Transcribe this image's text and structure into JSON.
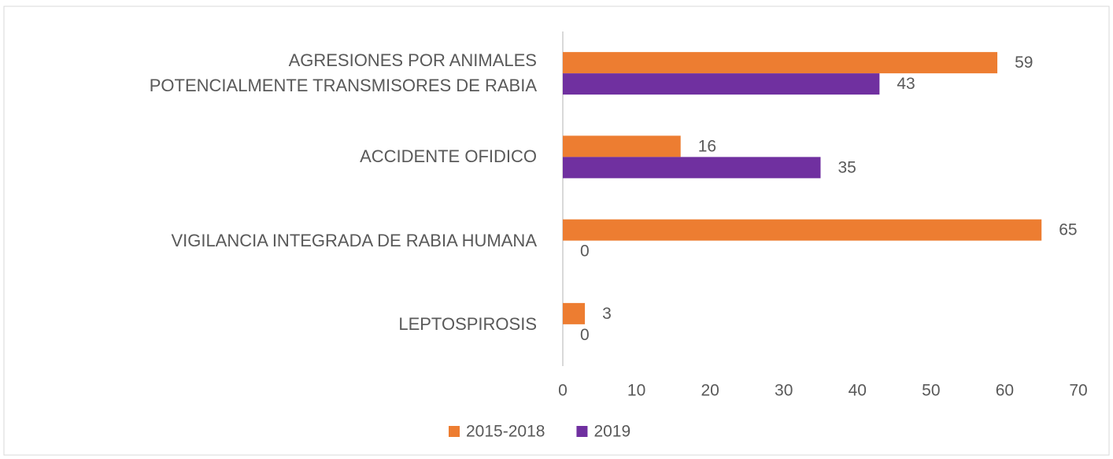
{
  "chart_data": {
    "type": "barh",
    "categories": [
      "AGRESIONES POR ANIMALES\nPOTENCIALMENTE TRANSMISORES DE RABIA",
      "ACCIDENTE OFIDICO",
      "VIGILANCIA INTEGRADA DE RABIA HUMANA",
      "LEPTOSPIROSIS"
    ],
    "series": [
      {
        "name": "2015-2018",
        "color": "#ed7d31",
        "values": [
          59,
          16,
          65,
          3
        ]
      },
      {
        "name": "2019",
        "color": "#7030a0",
        "values": [
          43,
          35,
          0,
          0
        ]
      }
    ],
    "xlim": [
      0,
      70
    ],
    "xticks": [
      0,
      10,
      20,
      30,
      40,
      50,
      60,
      70
    ],
    "legend": "bottom",
    "grid": false
  }
}
